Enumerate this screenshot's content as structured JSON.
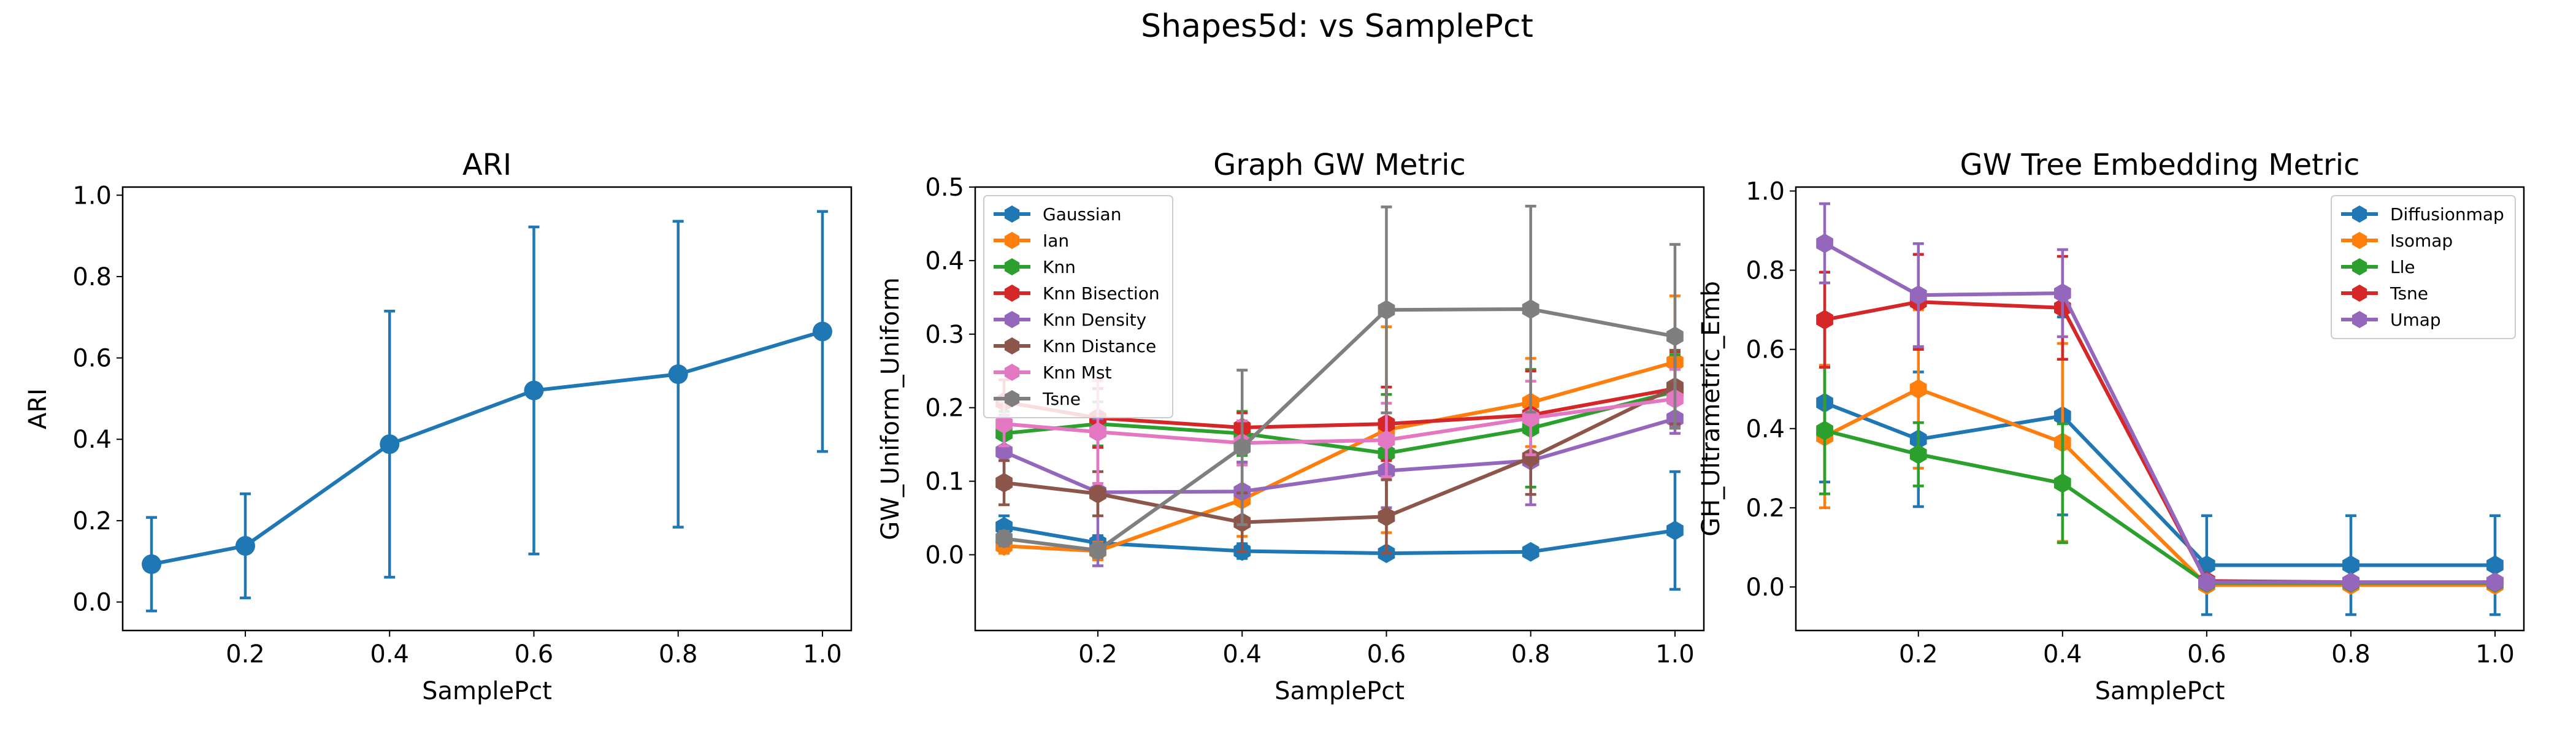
{
  "figure": {
    "suptitle": "Shapes5d: vs SamplePct"
  },
  "chart_data": [
    {
      "type": "line",
      "title": "ARI",
      "xlabel": "SamplePct",
      "ylabel": "ARI",
      "xlim": [
        0.03,
        1.04
      ],
      "ylim": [
        -0.07,
        1.02
      ],
      "xticks": [
        0.2,
        0.4,
        0.6,
        0.8,
        1.0
      ],
      "xtick_labels": [
        "0.2",
        "0.4",
        "0.6",
        "0.8",
        "1.0"
      ],
      "yticks": [
        0.0,
        0.2,
        0.4,
        0.6,
        0.8,
        1.0
      ],
      "ytick_labels": [
        "0.0",
        "0.2",
        "0.4",
        "0.6",
        "0.8",
        "1.0"
      ],
      "grid": false,
      "legend": null,
      "x": [
        0.07,
        0.2,
        0.4,
        0.6,
        0.8,
        1.0
      ],
      "series": [
        {
          "color": "#1f77b4",
          "marker": "circle",
          "values": [
            0.093,
            0.138,
            0.388,
            0.52,
            0.56,
            0.665
          ],
          "err": [
            0.115,
            0.128,
            0.327,
            0.402,
            0.376,
            0.295
          ]
        }
      ]
    },
    {
      "type": "line",
      "title": "Graph GW Metric",
      "xlabel": "SamplePct",
      "ylabel": "GW_Uniform_Uniform",
      "xlim": [
        0.03,
        1.04
      ],
      "ylim": [
        -0.103,
        0.5
      ],
      "xticks": [
        0.2,
        0.4,
        0.6,
        0.8,
        1.0
      ],
      "xtick_labels": [
        "0.2",
        "0.4",
        "0.6",
        "0.8",
        "1.0"
      ],
      "yticks": [
        0.0,
        0.1,
        0.2,
        0.3,
        0.4,
        0.5
      ],
      "ytick_labels": [
        "0.0",
        "0.1",
        "0.2",
        "0.3",
        "0.4",
        "0.5"
      ],
      "grid": false,
      "legend": "upper-left",
      "x": [
        0.07,
        0.2,
        0.4,
        0.6,
        0.8,
        1.0
      ],
      "series": [
        {
          "name": "Gaussian",
          "color": "#1f77b4",
          "marker": "hexagon",
          "values": [
            0.038,
            0.016,
            0.005,
            0.002,
            0.004,
            0.033
          ],
          "err": [
            0.015,
            0.01,
            0.01,
            0.005,
            0.006,
            0.08
          ]
        },
        {
          "name": "Ian",
          "color": "#ff7f0e",
          "marker": "hexagon",
          "values": [
            0.012,
            0.005,
            0.075,
            0.17,
            0.207,
            0.262
          ],
          "err": [
            0.01,
            0.012,
            0.05,
            0.14,
            0.06,
            0.09
          ]
        },
        {
          "name": "Knn",
          "color": "#2ca02c",
          "marker": "hexagon",
          "values": [
            0.165,
            0.178,
            0.165,
            0.138,
            0.172,
            0.222
          ],
          "err": [
            0.03,
            0.03,
            0.03,
            0.08,
            0.08,
            0.05
          ]
        },
        {
          "name": "Knn Bisection",
          "color": "#d62728",
          "marker": "hexagon",
          "values": [
            0.208,
            0.186,
            0.173,
            0.178,
            0.19,
            0.226
          ],
          "err": [
            0.03,
            0.04,
            0.02,
            0.05,
            0.06,
            0.05
          ]
        },
        {
          "name": "Knn Density",
          "color": "#9467bd",
          "marker": "hexagon",
          "values": [
            0.14,
            0.085,
            0.086,
            0.114,
            0.128,
            0.185
          ],
          "err": [
            0.05,
            0.1,
            0.04,
            0.05,
            0.06,
            0.02
          ]
        },
        {
          "name": "Knn Distance",
          "color": "#8c564b",
          "marker": "hexagon",
          "values": [
            0.098,
            0.083,
            0.044,
            0.052,
            0.132,
            0.228
          ],
          "err": [
            0.03,
            0.03,
            0.04,
            0.05,
            0.05,
            0.05
          ]
        },
        {
          "name": "Knn Mst",
          "color": "#e377c2",
          "marker": "hexagon",
          "values": [
            0.178,
            0.167,
            0.152,
            0.156,
            0.186,
            0.212
          ],
          "err": [
            0.03,
            0.07,
            0.03,
            0.05,
            0.05,
            0.04
          ]
        },
        {
          "name": "Tsne",
          "color": "#7f7f7f",
          "marker": "hexagon",
          "values": [
            0.022,
            0.006,
            0.146,
            0.333,
            0.334,
            0.297
          ],
          "err": [
            0.01,
            0.01,
            0.105,
            0.14,
            0.14,
            0.125
          ]
        }
      ]
    },
    {
      "type": "line",
      "title": "GW Tree Embedding Metric",
      "xlabel": "SamplePct",
      "ylabel": "GH_Ultrametric_Emb",
      "xlim": [
        0.03,
        1.04
      ],
      "ylim": [
        -0.11,
        1.01
      ],
      "xticks": [
        0.2,
        0.4,
        0.6,
        0.8,
        1.0
      ],
      "xtick_labels": [
        "0.2",
        "0.4",
        "0.6",
        "0.8",
        "1.0"
      ],
      "yticks": [
        0.0,
        0.2,
        0.4,
        0.6,
        0.8,
        1.0
      ],
      "ytick_labels": [
        "0.0",
        "0.2",
        "0.4",
        "0.6",
        "0.8",
        "1.0"
      ],
      "grid": false,
      "legend": "upper-right",
      "x": [
        0.07,
        0.2,
        0.4,
        0.6,
        0.8,
        1.0
      ],
      "series": [
        {
          "name": "Diffusionmap",
          "color": "#1f77b4",
          "marker": "hexagon",
          "values": [
            0.465,
            0.373,
            0.432,
            0.055,
            0.055,
            0.055
          ],
          "err": [
            0.2,
            0.17,
            0.25,
            0.125,
            0.125,
            0.125
          ]
        },
        {
          "name": "Isomap",
          "color": "#ff7f0e",
          "marker": "hexagon",
          "values": [
            0.38,
            0.5,
            0.365,
            0.005,
            0.005,
            0.005
          ],
          "err": [
            0.18,
            0.2,
            0.25,
            0.01,
            0.01,
            0.01
          ]
        },
        {
          "name": "Lle",
          "color": "#2ca02c",
          "marker": "hexagon",
          "values": [
            0.395,
            0.335,
            0.262,
            0.01,
            0.01,
            0.01
          ],
          "err": [
            0.16,
            0.08,
            0.15,
            0.01,
            0.01,
            0.01
          ]
        },
        {
          "name": "Tsne",
          "color": "#d62728",
          "marker": "hexagon",
          "values": [
            0.675,
            0.72,
            0.705,
            0.015,
            0.012,
            0.012
          ],
          "err": [
            0.12,
            0.12,
            0.13,
            0.01,
            0.01,
            0.01
          ]
        },
        {
          "name": "Umap",
          "color": "#9467bd",
          "marker": "hexagon",
          "values": [
            0.868,
            0.737,
            0.742,
            0.012,
            0.012,
            0.012
          ],
          "err": [
            0.1,
            0.13,
            0.11,
            0.01,
            0.01,
            0.01
          ]
        }
      ]
    }
  ]
}
